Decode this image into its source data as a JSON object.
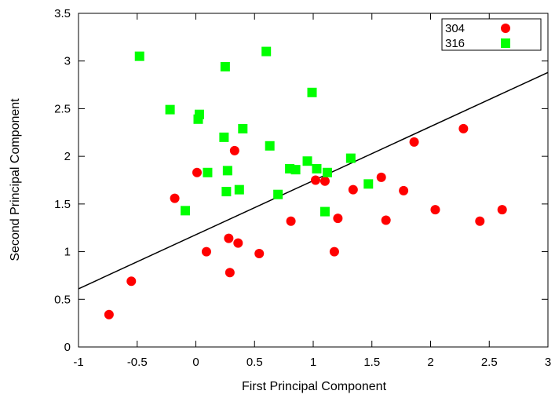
{
  "chart_data": {
    "type": "scatter",
    "xlabel": "First Principal Component",
    "ylabel": "Second Principal Component",
    "xlim": [
      -1,
      3
    ],
    "ylim": [
      0,
      3.5
    ],
    "x_ticks": [
      "-1",
      "-0.5",
      "0",
      "0.5",
      "1",
      "1.5",
      "2",
      "2.5",
      "3"
    ],
    "y_ticks": [
      "0",
      "0.5",
      "1",
      "1.5",
      "2",
      "2.5",
      "3",
      "3.5"
    ],
    "legend_position": "top-right",
    "grid": false,
    "series": [
      {
        "name": "304",
        "marker": "circle",
        "color": "#ff0000",
        "points": [
          [
            -0.74,
            0.34
          ],
          [
            -0.55,
            0.69
          ],
          [
            -0.18,
            1.56
          ],
          [
            0.01,
            1.83
          ],
          [
            0.09,
            1.0
          ],
          [
            0.28,
            1.14
          ],
          [
            0.29,
            0.78
          ],
          [
            0.33,
            2.06
          ],
          [
            0.36,
            1.09
          ],
          [
            0.54,
            0.98
          ],
          [
            0.81,
            1.32
          ],
          [
            1.02,
            1.75
          ],
          [
            1.1,
            1.74
          ],
          [
            1.18,
            1.0
          ],
          [
            1.21,
            1.35
          ],
          [
            1.34,
            1.65
          ],
          [
            1.58,
            1.78
          ],
          [
            1.62,
            1.33
          ],
          [
            1.77,
            1.64
          ],
          [
            1.86,
            2.15
          ],
          [
            2.04,
            1.44
          ],
          [
            2.28,
            2.29
          ],
          [
            2.42,
            1.32
          ],
          [
            2.61,
            1.44
          ]
        ]
      },
      {
        "name": "316",
        "marker": "square",
        "color": "#00ff00",
        "points": [
          [
            -0.48,
            3.05
          ],
          [
            -0.22,
            2.49
          ],
          [
            0.02,
            2.39
          ],
          [
            0.03,
            2.44
          ],
          [
            -0.09,
            1.43
          ],
          [
            0.1,
            1.83
          ],
          [
            0.24,
            2.2
          ],
          [
            0.25,
            2.94
          ],
          [
            0.26,
            1.63
          ],
          [
            0.27,
            1.85
          ],
          [
            0.37,
            1.65
          ],
          [
            0.4,
            2.29
          ],
          [
            0.6,
            3.1
          ],
          [
            0.63,
            2.11
          ],
          [
            0.7,
            1.6
          ],
          [
            0.8,
            1.87
          ],
          [
            0.85,
            1.86
          ],
          [
            0.95,
            1.95
          ],
          [
            0.99,
            2.67
          ],
          [
            1.03,
            1.87
          ],
          [
            1.1,
            1.42
          ],
          [
            1.12,
            1.83
          ],
          [
            1.32,
            1.98
          ],
          [
            1.47,
            1.71
          ]
        ]
      }
    ],
    "lines": [
      {
        "points": [
          [
            -1,
            0.61
          ],
          [
            3,
            2.88
          ]
        ],
        "color": "#000000"
      }
    ]
  }
}
